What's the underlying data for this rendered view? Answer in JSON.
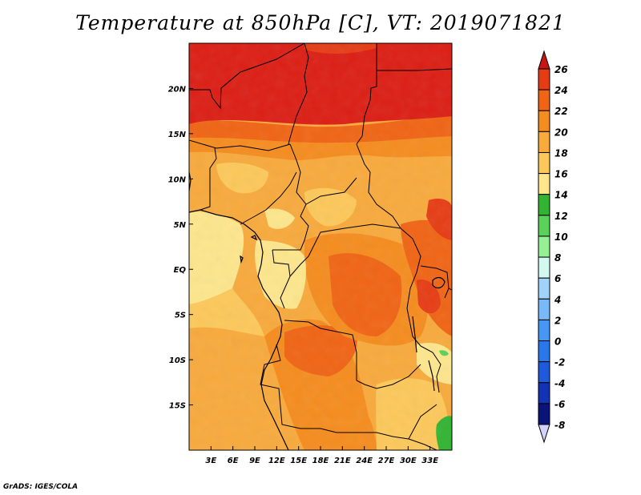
{
  "title": "Temperature at 850hPa [C], VT: 2019071821",
  "footer": "GrADS: IGES/COLA",
  "map": {
    "region": "Central Africa",
    "lon_range": [
      0,
      36
    ],
    "lat_range": [
      -20,
      25
    ],
    "x_ticks": [
      {
        "value": 3,
        "label": "3E"
      },
      {
        "value": 6,
        "label": "6E"
      },
      {
        "value": 9,
        "label": "9E"
      },
      {
        "value": 12,
        "label": "12E"
      },
      {
        "value": 15,
        "label": "15E"
      },
      {
        "value": 18,
        "label": "18E"
      },
      {
        "value": 21,
        "label": "21E"
      },
      {
        "value": 24,
        "label": "24E"
      },
      {
        "value": 27,
        "label": "27E"
      },
      {
        "value": 30,
        "label": "30E"
      },
      {
        "value": 33,
        "label": "33E"
      }
    ],
    "y_ticks": [
      {
        "value": 20,
        "label": "20N"
      },
      {
        "value": 15,
        "label": "15N"
      },
      {
        "value": 10,
        "label": "10N"
      },
      {
        "value": 5,
        "label": "5N"
      },
      {
        "value": 0,
        "label": "EQ"
      },
      {
        "value": -5,
        "label": "5S"
      },
      {
        "value": -10,
        "label": "10S"
      },
      {
        "value": -15,
        "label": "15S"
      }
    ]
  },
  "colorbar": {
    "levels": [
      {
        "label": "26",
        "color": "#dc1e14"
      },
      {
        "label": "24",
        "color": "#e63c14"
      },
      {
        "label": "22",
        "color": "#f06414"
      },
      {
        "label": "20",
        "color": "#f58c1e"
      },
      {
        "label": "18",
        "color": "#f8aa3c"
      },
      {
        "label": "16",
        "color": "#fcc85a"
      },
      {
        "label": "14",
        "color": "#fde68c"
      },
      {
        "label": "12",
        "color": "#32b432"
      },
      {
        "label": "10",
        "color": "#5ad25a"
      },
      {
        "label": "8",
        "color": "#96f096"
      },
      {
        "label": "6",
        "color": "#d2f8f0"
      },
      {
        "label": "4",
        "color": "#a0d2fa"
      },
      {
        "label": "2",
        "color": "#78b9fa"
      },
      {
        "label": "0",
        "color": "#4696f5"
      },
      {
        "label": "-2",
        "color": "#2878eb"
      },
      {
        "label": "-4",
        "color": "#1e5adc"
      },
      {
        "label": "-6",
        "color": "#1432b4"
      },
      {
        "label": "-8",
        "color": "#0a1478"
      }
    ],
    "top_color": "#c81414",
    "bottom_color": "#d2d2fa"
  }
}
